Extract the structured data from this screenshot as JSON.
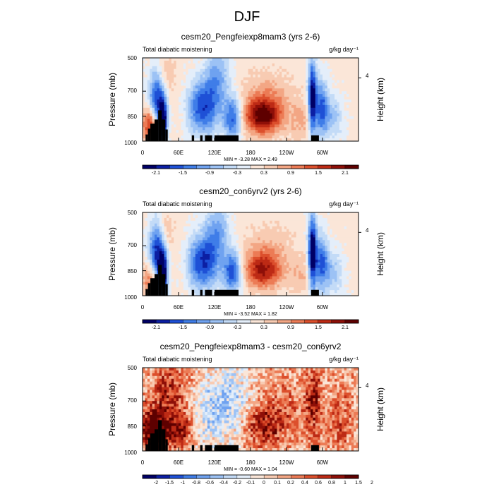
{
  "figure": {
    "title": "DJF"
  },
  "chart_data": [
    {
      "type": "heatmap",
      "title": "cesm20_Pengfeiexp8mam3 (yrs 2-6)",
      "subtitle_left": "Total diabatic moistening",
      "units": "g/kg day⁻¹",
      "ylabel": "Pressure (mb)",
      "y2label": "Height (km)",
      "x_ticks": [
        "0",
        "60E",
        "120E",
        "180",
        "120W",
        "60W"
      ],
      "y_ticks": [
        "500",
        "700",
        "850",
        "1000"
      ],
      "y2_ticks": [
        "4"
      ],
      "xlim": [
        0,
        360
      ],
      "ylim": [
        1000,
        500
      ],
      "stats": "MIN = -3.28  MAX =  2.49",
      "colorbar_labels": [
        "-2.1",
        "-1.5",
        "-0.9",
        "-0.3",
        "0.3",
        "0.9",
        "1.5",
        "2.1"
      ],
      "colorbar_palette": [
        "#000066",
        "#0c1fa3",
        "#1e50d6",
        "#3f7de8",
        "#6fa2f0",
        "#9cc2f5",
        "#c3dbf7",
        "#e4eefa",
        "#fbe6d8",
        "#f8cbb2",
        "#f3a684",
        "#ec7b55",
        "#dc4f2c",
        "#bd2a15",
        "#8e0f08",
        "#5e0000"
      ],
      "features": [
        {
          "x": 25,
          "p": 720,
          "sx": 10,
          "sp": 130,
          "a": -2.4
        },
        {
          "x": 34,
          "p": 880,
          "sx": 5,
          "sp": 90,
          "a": -2.6
        },
        {
          "x": 12,
          "p": 900,
          "sx": 9,
          "sp": 70,
          "a": 1.8
        },
        {
          "x": 33,
          "p": 620,
          "sx": 12,
          "sp": 100,
          "a": 1.0
        },
        {
          "x": 88,
          "p": 800,
          "sx": 12,
          "sp": 110,
          "a": -1.1
        },
        {
          "x": 108,
          "p": 800,
          "sx": 14,
          "sp": 120,
          "a": -1.5
        },
        {
          "x": 125,
          "p": 620,
          "sx": 14,
          "sp": 130,
          "a": -1.2
        },
        {
          "x": 150,
          "p": 860,
          "sx": 11,
          "sp": 90,
          "a": -1.9
        },
        {
          "x": 200,
          "p": 850,
          "sx": 22,
          "sp": 75,
          "a": 2.3
        },
        {
          "x": 210,
          "p": 720,
          "sx": 30,
          "sp": 100,
          "a": 0.6
        },
        {
          "x": 283,
          "p": 740,
          "sx": 5,
          "sp": 160,
          "a": -2.6
        },
        {
          "x": 298,
          "p": 800,
          "sx": 8,
          "sp": 120,
          "a": -1.8
        },
        {
          "x": 318,
          "p": 860,
          "sx": 12,
          "sp": 90,
          "a": -0.9
        },
        {
          "x": 265,
          "p": 880,
          "sx": 14,
          "sp": 80,
          "a": 0.6
        }
      ],
      "terrain": [
        [
          5,
          9,
          960
        ],
        [
          9,
          13,
          925
        ],
        [
          13,
          20,
          895
        ],
        [
          20,
          26,
          870
        ],
        [
          26,
          32,
          815
        ],
        [
          32,
          38,
          870
        ],
        [
          38,
          42,
          930
        ],
        [
          82,
          86,
          965
        ],
        [
          96,
          100,
          965
        ],
        [
          104,
          116,
          965
        ],
        [
          120,
          160,
          965
        ],
        [
          281,
          294,
          965
        ]
      ],
      "noise": 0.12
    },
    {
      "type": "heatmap",
      "title": "cesm20_con6yrv2 (yrs 2-6)",
      "subtitle_left": "Total diabatic moistening",
      "units": "g/kg day⁻¹",
      "ylabel": "Pressure (mb)",
      "y2label": "Height (km)",
      "x_ticks": [
        "0",
        "60E",
        "120E",
        "180",
        "120W",
        "60W"
      ],
      "y_ticks": [
        "500",
        "700",
        "850",
        "1000"
      ],
      "y2_ticks": [
        "4"
      ],
      "xlim": [
        0,
        360
      ],
      "ylim": [
        1000,
        500
      ],
      "stats": "MIN = -3.52  MAX =  1.82",
      "colorbar_labels": [
        "-2.1",
        "-1.5",
        "-0.9",
        "-0.3",
        "0.3",
        "0.9",
        "1.5",
        "2.1"
      ],
      "colorbar_palette": [
        "#000066",
        "#0c1fa3",
        "#1e50d6",
        "#3f7de8",
        "#6fa2f0",
        "#9cc2f5",
        "#c3dbf7",
        "#e4eefa",
        "#fbe6d8",
        "#f8cbb2",
        "#f3a684",
        "#ec7b55",
        "#dc4f2c",
        "#bd2a15",
        "#8e0f08",
        "#5e0000"
      ],
      "features": [
        {
          "x": 25,
          "p": 720,
          "sx": 10,
          "sp": 130,
          "a": -2.6
        },
        {
          "x": 34,
          "p": 880,
          "sx": 5,
          "sp": 90,
          "a": -2.8
        },
        {
          "x": 12,
          "p": 900,
          "sx": 9,
          "sp": 70,
          "a": 1.2
        },
        {
          "x": 33,
          "p": 620,
          "sx": 12,
          "sp": 100,
          "a": 0.9
        },
        {
          "x": 88,
          "p": 800,
          "sx": 12,
          "sp": 110,
          "a": -1.1
        },
        {
          "x": 108,
          "p": 800,
          "sx": 14,
          "sp": 120,
          "a": -1.6
        },
        {
          "x": 125,
          "p": 620,
          "sx": 14,
          "sp": 130,
          "a": -1.2
        },
        {
          "x": 150,
          "p": 860,
          "sx": 11,
          "sp": 90,
          "a": -2.0
        },
        {
          "x": 200,
          "p": 850,
          "sx": 22,
          "sp": 75,
          "a": 1.8
        },
        {
          "x": 210,
          "p": 720,
          "sx": 30,
          "sp": 100,
          "a": 0.5
        },
        {
          "x": 283,
          "p": 740,
          "sx": 5,
          "sp": 160,
          "a": -2.8
        },
        {
          "x": 298,
          "p": 800,
          "sx": 8,
          "sp": 120,
          "a": -1.7
        },
        {
          "x": 318,
          "p": 860,
          "sx": 12,
          "sp": 90,
          "a": -0.9
        },
        {
          "x": 265,
          "p": 880,
          "sx": 14,
          "sp": 80,
          "a": 0.5
        }
      ],
      "terrain": [
        [
          5,
          9,
          960
        ],
        [
          9,
          13,
          925
        ],
        [
          13,
          20,
          895
        ],
        [
          20,
          26,
          870
        ],
        [
          26,
          32,
          815
        ],
        [
          32,
          38,
          870
        ],
        [
          38,
          42,
          930
        ],
        [
          82,
          86,
          965
        ],
        [
          96,
          100,
          965
        ],
        [
          104,
          116,
          965
        ],
        [
          120,
          160,
          965
        ],
        [
          281,
          294,
          965
        ]
      ],
      "noise": 0.12
    },
    {
      "type": "heatmap",
      "title": "cesm20_Pengfeiexp8mam3 - cesm20_con6yrv2",
      "subtitle_left": "Total diabatic moistening",
      "units": "g/kg day⁻¹",
      "ylabel": "Pressure (mb)",
      "y2label": "Height (km)",
      "x_ticks": [
        "0",
        "60E",
        "120E",
        "180",
        "120W",
        "60W"
      ],
      "y_ticks": [
        "500",
        "700",
        "850",
        "1000"
      ],
      "y2_ticks": [
        "4"
      ],
      "xlim": [
        0,
        360
      ],
      "ylim": [
        1000,
        500
      ],
      "stats": "MIN = -0.60  MAX =  1.04",
      "colorbar_labels": [
        "-2",
        "-1.5",
        "-1",
        "-0.8",
        "-0.6",
        "-0.4",
        "-0.2",
        "-0.1",
        "0",
        "0.1",
        "0.2",
        "0.4",
        "0.6",
        "0.8",
        "1",
        "1.5",
        "2"
      ],
      "colorbar_palette": [
        "#000066",
        "#0c1fa3",
        "#1e50d6",
        "#3f7de8",
        "#6fa2f0",
        "#9cc2f5",
        "#c3dbf7",
        "#e4eefa",
        "#fbe6d8",
        "#f8cbb2",
        "#f3a684",
        "#ec7b55",
        "#dc4f2c",
        "#bd2a15",
        "#8e0f08",
        "#5e0000"
      ],
      "features": [
        {
          "x": 20,
          "p": 860,
          "sx": 16,
          "sp": 90,
          "a": 0.45
        },
        {
          "x": 60,
          "p": 870,
          "sx": 16,
          "sp": 80,
          "a": 0.3
        },
        {
          "x": 45,
          "p": 620,
          "sx": 20,
          "sp": 110,
          "a": 0.2
        },
        {
          "x": 110,
          "p": 760,
          "sx": 18,
          "sp": 160,
          "a": -0.2
        },
        {
          "x": 150,
          "p": 700,
          "sx": 20,
          "sp": 160,
          "a": -0.22
        },
        {
          "x": 200,
          "p": 850,
          "sx": 22,
          "sp": 90,
          "a": 0.25
        },
        {
          "x": 240,
          "p": 760,
          "sx": 22,
          "sp": 150,
          "a": 0.12
        },
        {
          "x": 285,
          "p": 700,
          "sx": 10,
          "sp": 160,
          "a": 0.25
        },
        {
          "x": 330,
          "p": 800,
          "sx": 14,
          "sp": 140,
          "a": 0.15
        }
      ],
      "terrain": [
        [
          5,
          9,
          960
        ],
        [
          9,
          13,
          925
        ],
        [
          13,
          20,
          895
        ],
        [
          20,
          26,
          870
        ],
        [
          26,
          32,
          815
        ],
        [
          32,
          38,
          870
        ],
        [
          38,
          42,
          930
        ],
        [
          82,
          86,
          965
        ],
        [
          96,
          100,
          965
        ],
        [
          104,
          116,
          965
        ],
        [
          120,
          160,
          965
        ],
        [
          281,
          294,
          965
        ]
      ],
      "noise": 0.09
    }
  ]
}
